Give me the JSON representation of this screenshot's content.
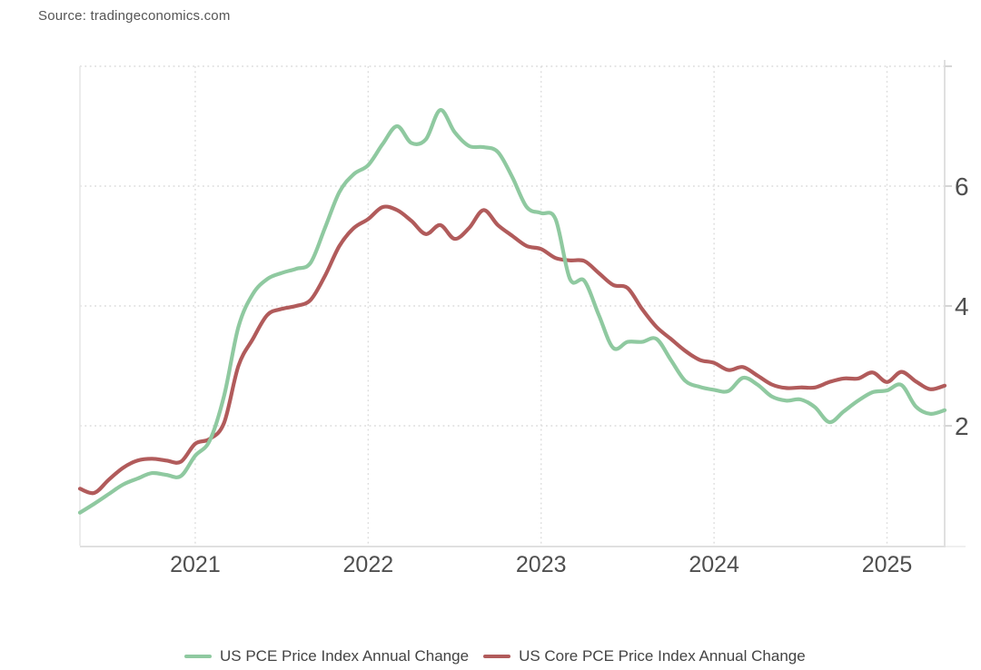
{
  "page": {
    "source_label": "Source: tradingeconomics.com"
  },
  "colors": {
    "background": "#ffffff",
    "grid": "#dcdcdc",
    "axis": "#e0e0e0",
    "axis_left": "#e8e8e8",
    "tick": "#d6d6d6",
    "axis_label_text": "#4f4f4f",
    "legend_text": "#444444",
    "source_text": "#555555",
    "pce_green": "#8fc9a0",
    "core_pce_red": "#b15b5b"
  },
  "chart_data": {
    "type": "line",
    "grid": "dotted",
    "legend_position": "bottom",
    "ylim": [
      0,
      8
    ],
    "y_gridlines": [
      2,
      4,
      6,
      8
    ],
    "y_tick_labels": [
      "2",
      "4",
      "6"
    ],
    "x_tick_labels": [
      "2021",
      "2022",
      "2023",
      "2024",
      "2025"
    ],
    "x": [
      "2020-05",
      "2020-06",
      "2020-07",
      "2020-08",
      "2020-09",
      "2020-10",
      "2020-11",
      "2020-12",
      "2021-01",
      "2021-02",
      "2021-03",
      "2021-04",
      "2021-05",
      "2021-06",
      "2021-07",
      "2021-08",
      "2021-09",
      "2021-10",
      "2021-11",
      "2021-12",
      "2022-01",
      "2022-02",
      "2022-03",
      "2022-04",
      "2022-05",
      "2022-06",
      "2022-07",
      "2022-08",
      "2022-09",
      "2022-10",
      "2022-11",
      "2022-12",
      "2023-01",
      "2023-02",
      "2023-03",
      "2023-04",
      "2023-05",
      "2023-06",
      "2023-07",
      "2023-08",
      "2023-09",
      "2023-10",
      "2023-11",
      "2023-12",
      "2024-01",
      "2024-02",
      "2024-03",
      "2024-04",
      "2024-05",
      "2024-06",
      "2024-07",
      "2024-08",
      "2024-09",
      "2024-10",
      "2024-11",
      "2024-12",
      "2025-01",
      "2025-02",
      "2025-03",
      "2025-04",
      "2025-05"
    ],
    "series": [
      {
        "name": "US PCE Price Index Annual Change",
        "color": "#8fc9a0",
        "values": [
          0.55,
          0.7,
          0.86,
          1.02,
          1.12,
          1.21,
          1.18,
          1.16,
          1.5,
          1.75,
          2.5,
          3.65,
          4.2,
          4.45,
          4.55,
          4.62,
          4.72,
          5.3,
          5.9,
          6.2,
          6.35,
          6.7,
          7.0,
          6.72,
          6.78,
          7.27,
          6.9,
          6.67,
          6.65,
          6.57,
          6.15,
          5.65,
          5.55,
          5.45,
          4.45,
          4.42,
          3.85,
          3.3,
          3.4,
          3.4,
          3.45,
          3.1,
          2.75,
          2.65,
          2.6,
          2.58,
          2.8,
          2.69,
          2.49,
          2.42,
          2.44,
          2.31,
          2.06,
          2.24,
          2.42,
          2.56,
          2.59,
          2.68,
          2.32,
          2.2,
          2.26
        ]
      },
      {
        "name": "US Core PCE Price Index Annual Change",
        "color": "#b15b5b",
        "values": [
          0.95,
          0.88,
          1.1,
          1.3,
          1.42,
          1.45,
          1.42,
          1.4,
          1.7,
          1.78,
          2.05,
          3.0,
          3.45,
          3.85,
          3.95,
          4.0,
          4.1,
          4.5,
          5.0,
          5.3,
          5.45,
          5.65,
          5.6,
          5.42,
          5.2,
          5.35,
          5.12,
          5.3,
          5.6,
          5.35,
          5.17,
          5.0,
          4.95,
          4.8,
          4.76,
          4.75,
          4.55,
          4.35,
          4.3,
          3.95,
          3.65,
          3.45,
          3.25,
          3.1,
          3.05,
          2.93,
          2.98,
          2.84,
          2.69,
          2.63,
          2.64,
          2.64,
          2.73,
          2.79,
          2.79,
          2.89,
          2.73,
          2.9,
          2.74,
          2.61,
          2.67
        ]
      }
    ]
  }
}
